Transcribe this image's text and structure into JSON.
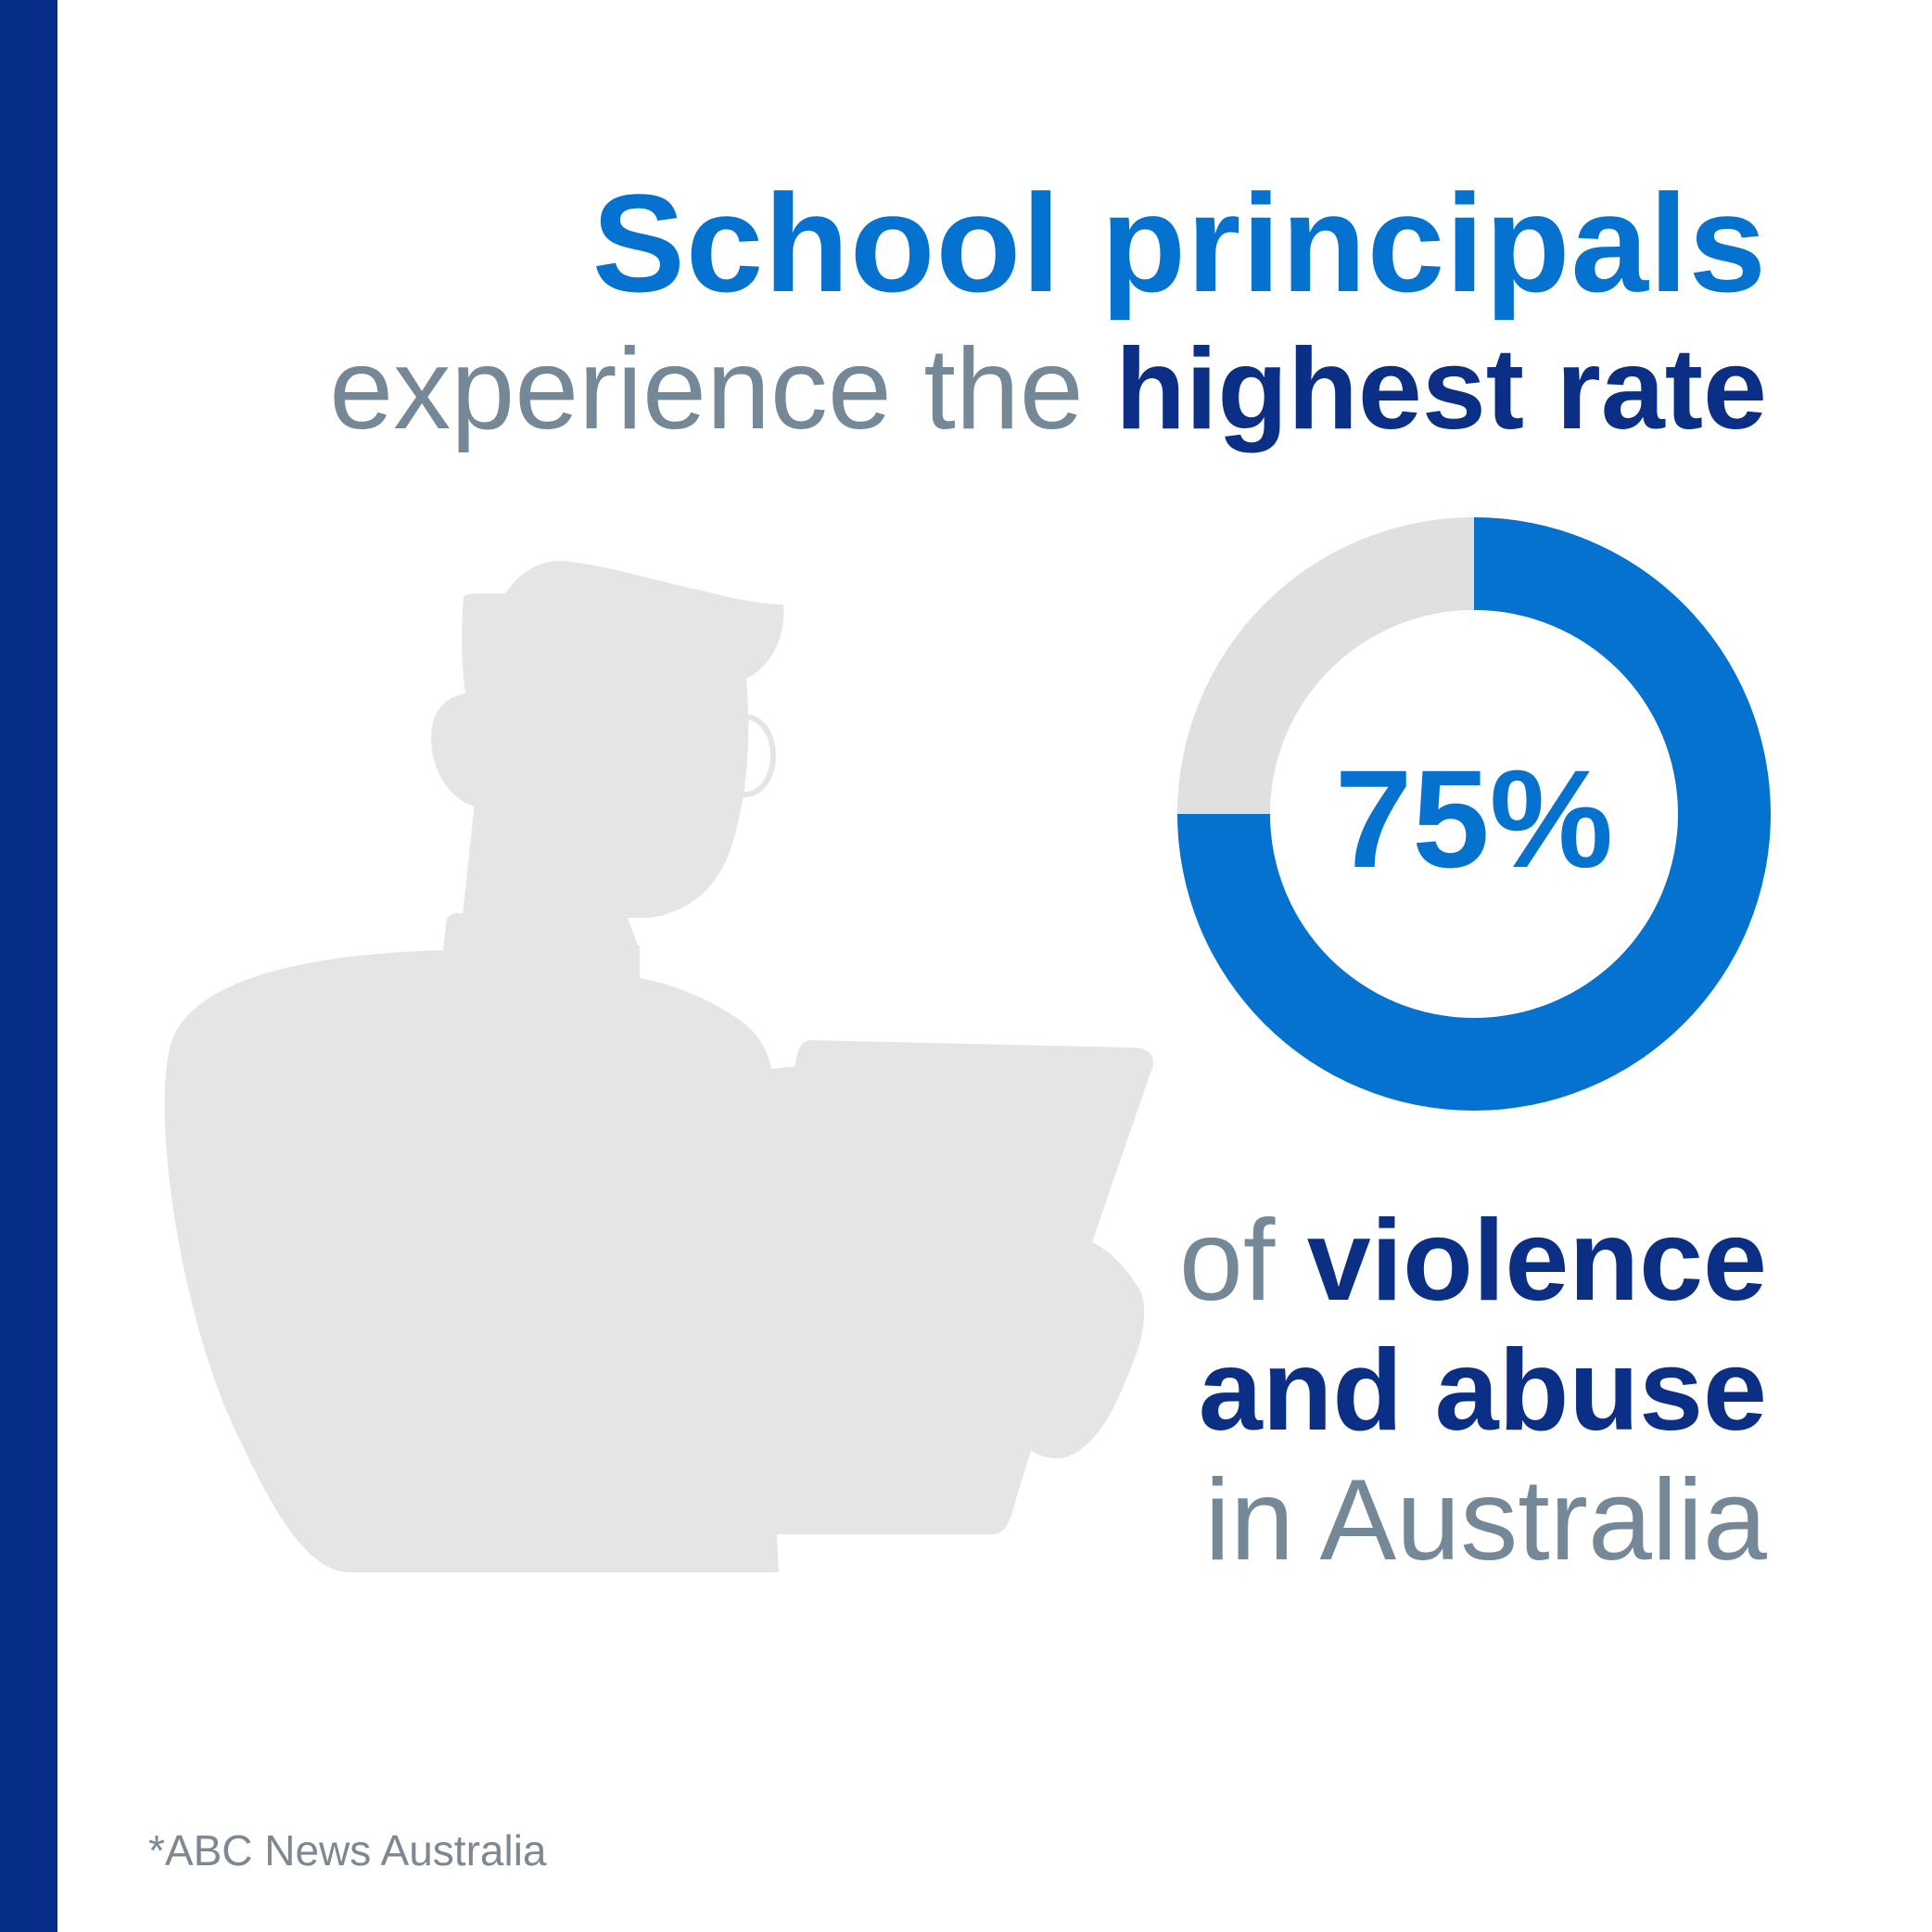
{
  "colors": {
    "sidebar": "#062d87",
    "accent_blue": "#0572cf",
    "navy": "#0a2f84",
    "slate": "#758897",
    "silhouette": "#e5e5e5",
    "donut_remainder": "#e0e0e0",
    "source_gray": "#7e8891"
  },
  "headline": {
    "line1": "School principals",
    "line2_light": "experience the",
    "line2_bold": "highest rate"
  },
  "caption": {
    "of": "of",
    "violence": "violence",
    "and_abuse": "and abuse",
    "in_australia": "in Australia"
  },
  "source": "*ABC News Australia",
  "illustration": {
    "icon": "principal-silhouette-icon"
  },
  "chart_data": {
    "type": "pie",
    "style": "donut",
    "label": "75%",
    "segments": [
      {
        "name": "",
        "value": 75,
        "color": "#0572cf"
      },
      {
        "name": "",
        "value": 25,
        "color": "#e0e0e0"
      }
    ]
  }
}
